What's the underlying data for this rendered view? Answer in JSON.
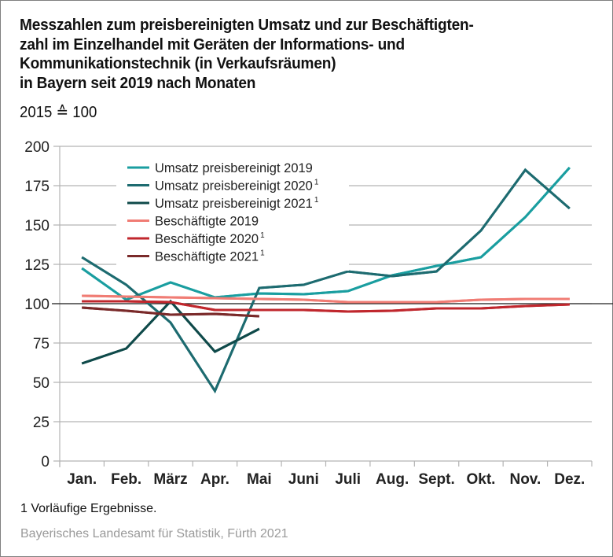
{
  "chart_data": {
    "type": "line",
    "title": "Messzahlen zum preisbereinigten Umsatz und zur Beschäftigtenzahl im Einzelhandel mit Geräten der Informations- und Kommunikationstechnik (in Verkaufsräumen) in Bayern seit 2019 nach Monaten",
    "title_lines": [
      "Messzahlen zum preisbereinigten Umsatz und zur Beschäftigten-",
      "zahl im Einzelhandel mit Geräten der Informations- und",
      "Kommunikationstechnik (in Verkaufsräumen)",
      "in Bayern seit 2019 nach Monaten"
    ],
    "subtitle": "2015 ≙ 100",
    "xlabel": "",
    "ylabel": "",
    "categories": [
      "Jan.",
      "Feb.",
      "März",
      "Apr.",
      "Mai",
      "Juni",
      "Juli",
      "Aug.",
      "Sept.",
      "Okt.",
      "Nov.",
      "Dez."
    ],
    "ylim": [
      0,
      200
    ],
    "yticks": [
      0,
      25,
      50,
      75,
      100,
      125,
      150,
      175,
      200
    ],
    "reference_line": 100,
    "grid": true,
    "legend_position": "top-left",
    "series": [
      {
        "name": "Umsatz preisbereinigt 2019",
        "footnote": "",
        "color": "#1a9ea0",
        "values": [
          122.5,
          102.5,
          113.5,
          104,
          106.5,
          106,
          108,
          118,
          124,
          129.5,
          155,
          186.5
        ]
      },
      {
        "name": "Umsatz preisbereinigt 2020",
        "footnote": "1",
        "color": "#1d6b70",
        "values": [
          129.5,
          112,
          88,
          44.5,
          110,
          112,
          120.5,
          117.5,
          120.5,
          146.5,
          185,
          160.5
        ]
      },
      {
        "name": "Umsatz preisbereinigt 2021",
        "footnote": "1",
        "color": "#0f4a4a",
        "values": [
          62,
          71.5,
          101.5,
          69.5,
          84,
          null,
          null,
          null,
          null,
          null,
          null,
          null
        ]
      },
      {
        "name": "Beschäftigte 2019",
        "footnote": "",
        "color": "#f07c74",
        "values": [
          105,
          104.5,
          104,
          103.5,
          103,
          102.5,
          101,
          101,
          101,
          102.5,
          103,
          103
        ]
      },
      {
        "name": "Beschäftigte 2020",
        "footnote": "1",
        "color": "#c0272d",
        "values": [
          101.5,
          101.5,
          101,
          96,
          96,
          96,
          95,
          95.5,
          97,
          97,
          98.5,
          99.5
        ]
      },
      {
        "name": "Beschäftigte 2021",
        "footnote": "1",
        "color": "#7a2a2a",
        "values": [
          97.5,
          95.5,
          93,
          93.5,
          92,
          null,
          null,
          null,
          null,
          null,
          null,
          null
        ]
      }
    ]
  },
  "footnote": "1  Vorläufige Ergebnisse.",
  "source": "Bayerisches Landesamt für Statistik, Fürth 2021"
}
